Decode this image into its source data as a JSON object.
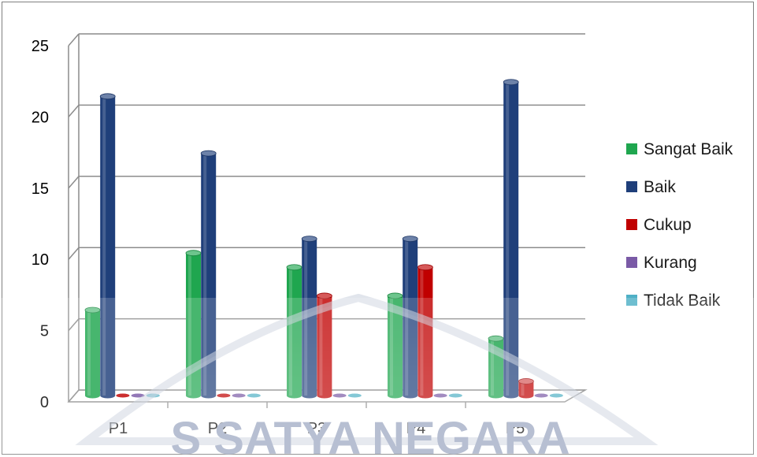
{
  "chart_data": {
    "type": "bar",
    "categories": [
      "P1",
      "P2",
      "P3",
      "P4",
      "P5"
    ],
    "series": [
      {
        "name": "Sangat Baik",
        "color": "#1fa64f",
        "values": [
          6,
          10,
          9,
          7,
          4
        ]
      },
      {
        "name": "Baik",
        "color": "#1f3f7a",
        "values": [
          21,
          17,
          11,
          11,
          22
        ]
      },
      {
        "name": "Cukup",
        "color": "#c00000",
        "values": [
          0,
          0,
          7,
          9,
          1
        ]
      },
      {
        "name": "Kurang",
        "color": "#7a5aa6",
        "values": [
          0,
          0,
          0,
          0,
          0
        ]
      },
      {
        "name": "Tidak Baik",
        "color": "#4fb0c6",
        "values": [
          0,
          0,
          0,
          0,
          0
        ]
      }
    ],
    "y_ticks": [
      "0",
      "5",
      "10",
      "15",
      "20",
      "25"
    ],
    "ylim": [
      0,
      25
    ],
    "grid": true,
    "legend_position": "right",
    "style": "3d-cylinder"
  },
  "watermark": {
    "text": "S SATYA NEGARA",
    "symbol": "logo-triangle"
  }
}
